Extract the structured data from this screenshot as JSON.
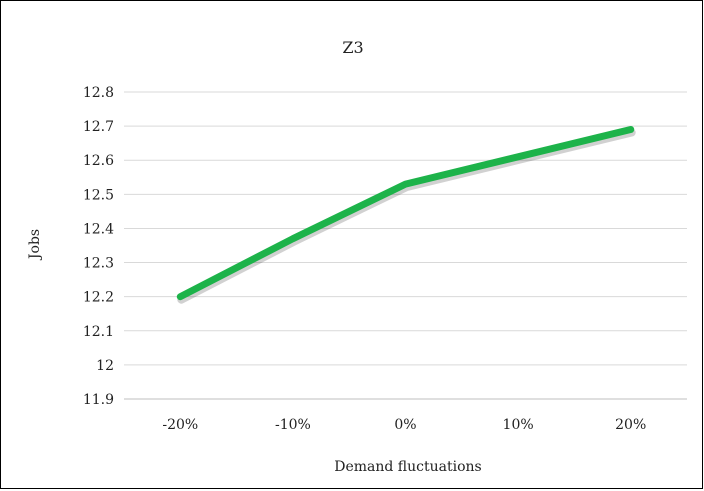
{
  "chart_data": {
    "type": "line",
    "title": "Z3",
    "xlabel": "Demand fluctuations",
    "ylabel": "Jobs",
    "categories": [
      "-20%",
      "-10%",
      "0%",
      "10%",
      "20%"
    ],
    "series": [
      {
        "values": [
          12.2,
          12.37,
          12.53,
          12.61,
          12.69
        ],
        "color": "#1db34a"
      }
    ],
    "ylim": [
      11.9,
      12.8
    ],
    "y_ticks": [
      "11.9",
      "12",
      "12.1",
      "12.2",
      "12.3",
      "12.4",
      "12.5",
      "12.6",
      "12.7",
      "12.8"
    ],
    "grid": true,
    "legend": "none",
    "gridline_color": "#d9d9d9",
    "axis_line_color": "#bfbfbf"
  }
}
